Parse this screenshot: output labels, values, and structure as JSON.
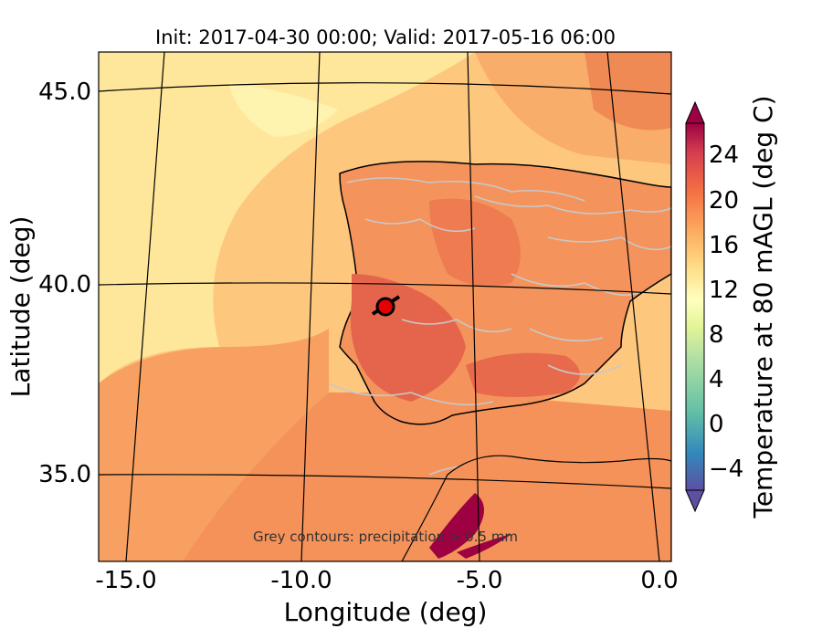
{
  "title": "Init: 2017-04-30 00:00; Valid: 2017-05-16 06:00",
  "xlabel": "Longitude (deg)",
  "ylabel": "Latitude (deg)",
  "annotation": "Grey contours: precipitation > 0.5 mm",
  "x_ticks": [
    "-15.0",
    "-10.0",
    "-5.0",
    "0.0"
  ],
  "y_ticks": [
    "45.0",
    "40.0",
    "35.0"
  ],
  "colorbar": {
    "label": "Temperature at 80 mAGL (deg C)",
    "ticks": [
      "24",
      "20",
      "16",
      "12",
      "8",
      "4",
      "0",
      "−4"
    ],
    "range": [
      -6,
      28
    ],
    "extend": "both",
    "colormap": "Spectral_r"
  },
  "marker": {
    "label_visible": false,
    "lon": -7.8,
    "lat": 39.4,
    "color": "#e60000"
  },
  "map_extent": {
    "lon": [
      -16,
      0
    ],
    "lat": [
      33,
      46
    ]
  },
  "colors": {
    "sea_cool": "#fde99a",
    "sea_mid": "#fdbf6f",
    "land_warm": "#f08a55",
    "land_hot": "#e0604a",
    "precip_contour": "#c8c8c8",
    "coastline": "#000000"
  }
}
